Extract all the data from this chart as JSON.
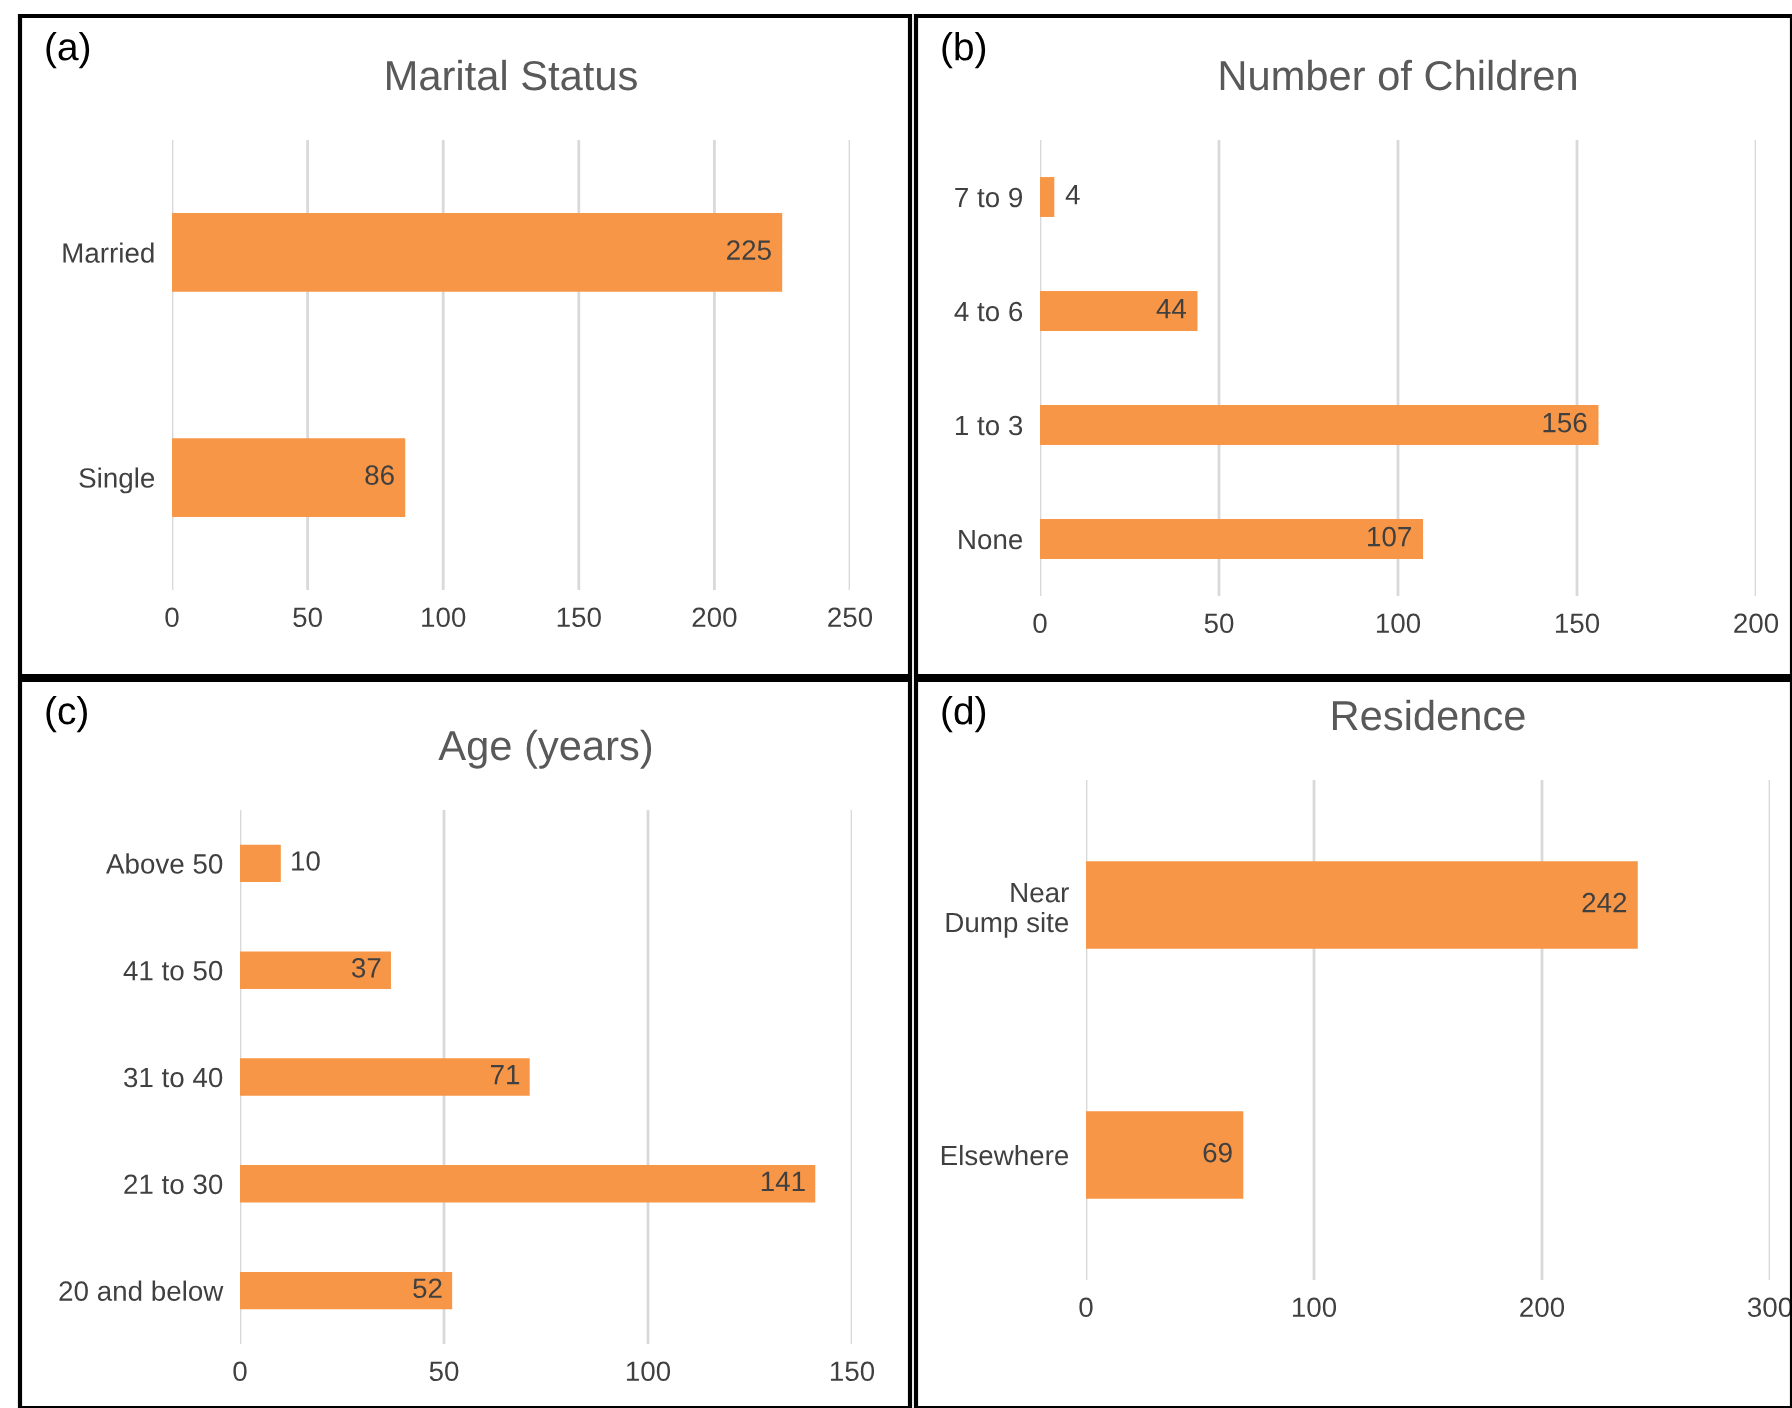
{
  "chart_data": [
    {
      "type": "bar",
      "orientation": "horizontal",
      "title": "Marital Status",
      "annotations": [
        "(a)"
      ],
      "categories": [
        "Married",
        "Single"
      ],
      "values": [
        225,
        86
      ],
      "color": "#f79646",
      "xlim": [
        0,
        250
      ],
      "xticks": [
        0,
        50,
        100,
        150,
        200,
        250
      ],
      "grid": "x",
      "data_labels": true
    },
    {
      "type": "bar",
      "orientation": "horizontal",
      "title": "Number of Children",
      "annotations": [
        "(b)"
      ],
      "categories": [
        "7 to 9",
        "4 to 6",
        "1 to 3",
        "None"
      ],
      "values": [
        4,
        44,
        156,
        107
      ],
      "color": "#f79646",
      "xlim": [
        0,
        200
      ],
      "xticks": [
        0,
        50,
        100,
        150,
        200
      ],
      "grid": "x",
      "data_labels": true
    },
    {
      "type": "bar",
      "orientation": "horizontal",
      "title": "Age (years)",
      "annotations": [
        "(c)"
      ],
      "categories": [
        "Above 50",
        "41 to 50",
        "31 to 40",
        "21 to 30",
        "20 and below"
      ],
      "values": [
        10,
        37,
        71,
        141,
        52
      ],
      "color": "#f79646",
      "xlim": [
        0,
        150
      ],
      "xticks": [
        0,
        50,
        100,
        150
      ],
      "grid": "x",
      "data_labels": true
    },
    {
      "type": "bar",
      "orientation": "horizontal",
      "title": "Residence",
      "annotations": [
        "(d)"
      ],
      "categories": [
        "Near\nDump site",
        "Elsewhere"
      ],
      "values": [
        242,
        69
      ],
      "color": "#f79646",
      "xlim": [
        0,
        300
      ],
      "xticks": [
        0,
        100,
        200,
        300
      ],
      "grid": "x",
      "data_labels": true
    }
  ]
}
